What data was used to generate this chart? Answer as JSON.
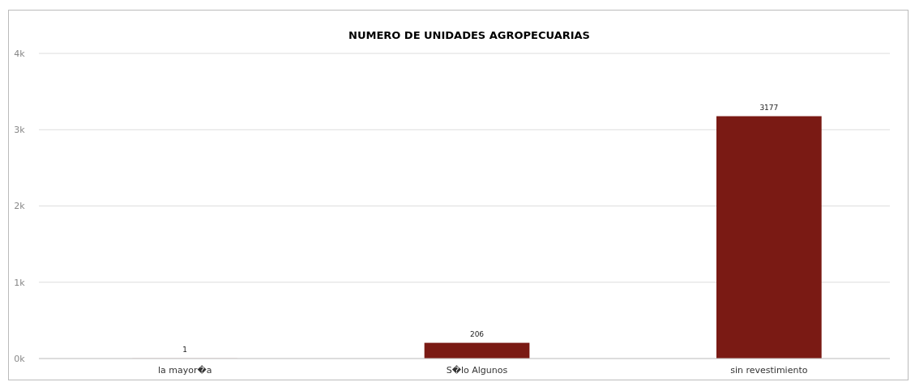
{
  "chart_data": {
    "type": "bar",
    "title": "NUMERO DE UNIDADES AGROPECUARIAS",
    "categories": [
      "la mayor�a",
      "S�lo Algunos",
      "sin revestimiento"
    ],
    "values": [
      1,
      206,
      3177
    ],
    "color": "#7a1a14",
    "ylim": [
      0,
      4000
    ],
    "yticks": [
      {
        "value": 0,
        "label": "0k"
      },
      {
        "value": 1000,
        "label": "1k"
      },
      {
        "value": 2000,
        "label": "2k"
      },
      {
        "value": 3000,
        "label": "3k"
      },
      {
        "value": 4000,
        "label": "4k"
      }
    ],
    "grid": "y",
    "data_labels": true
  }
}
